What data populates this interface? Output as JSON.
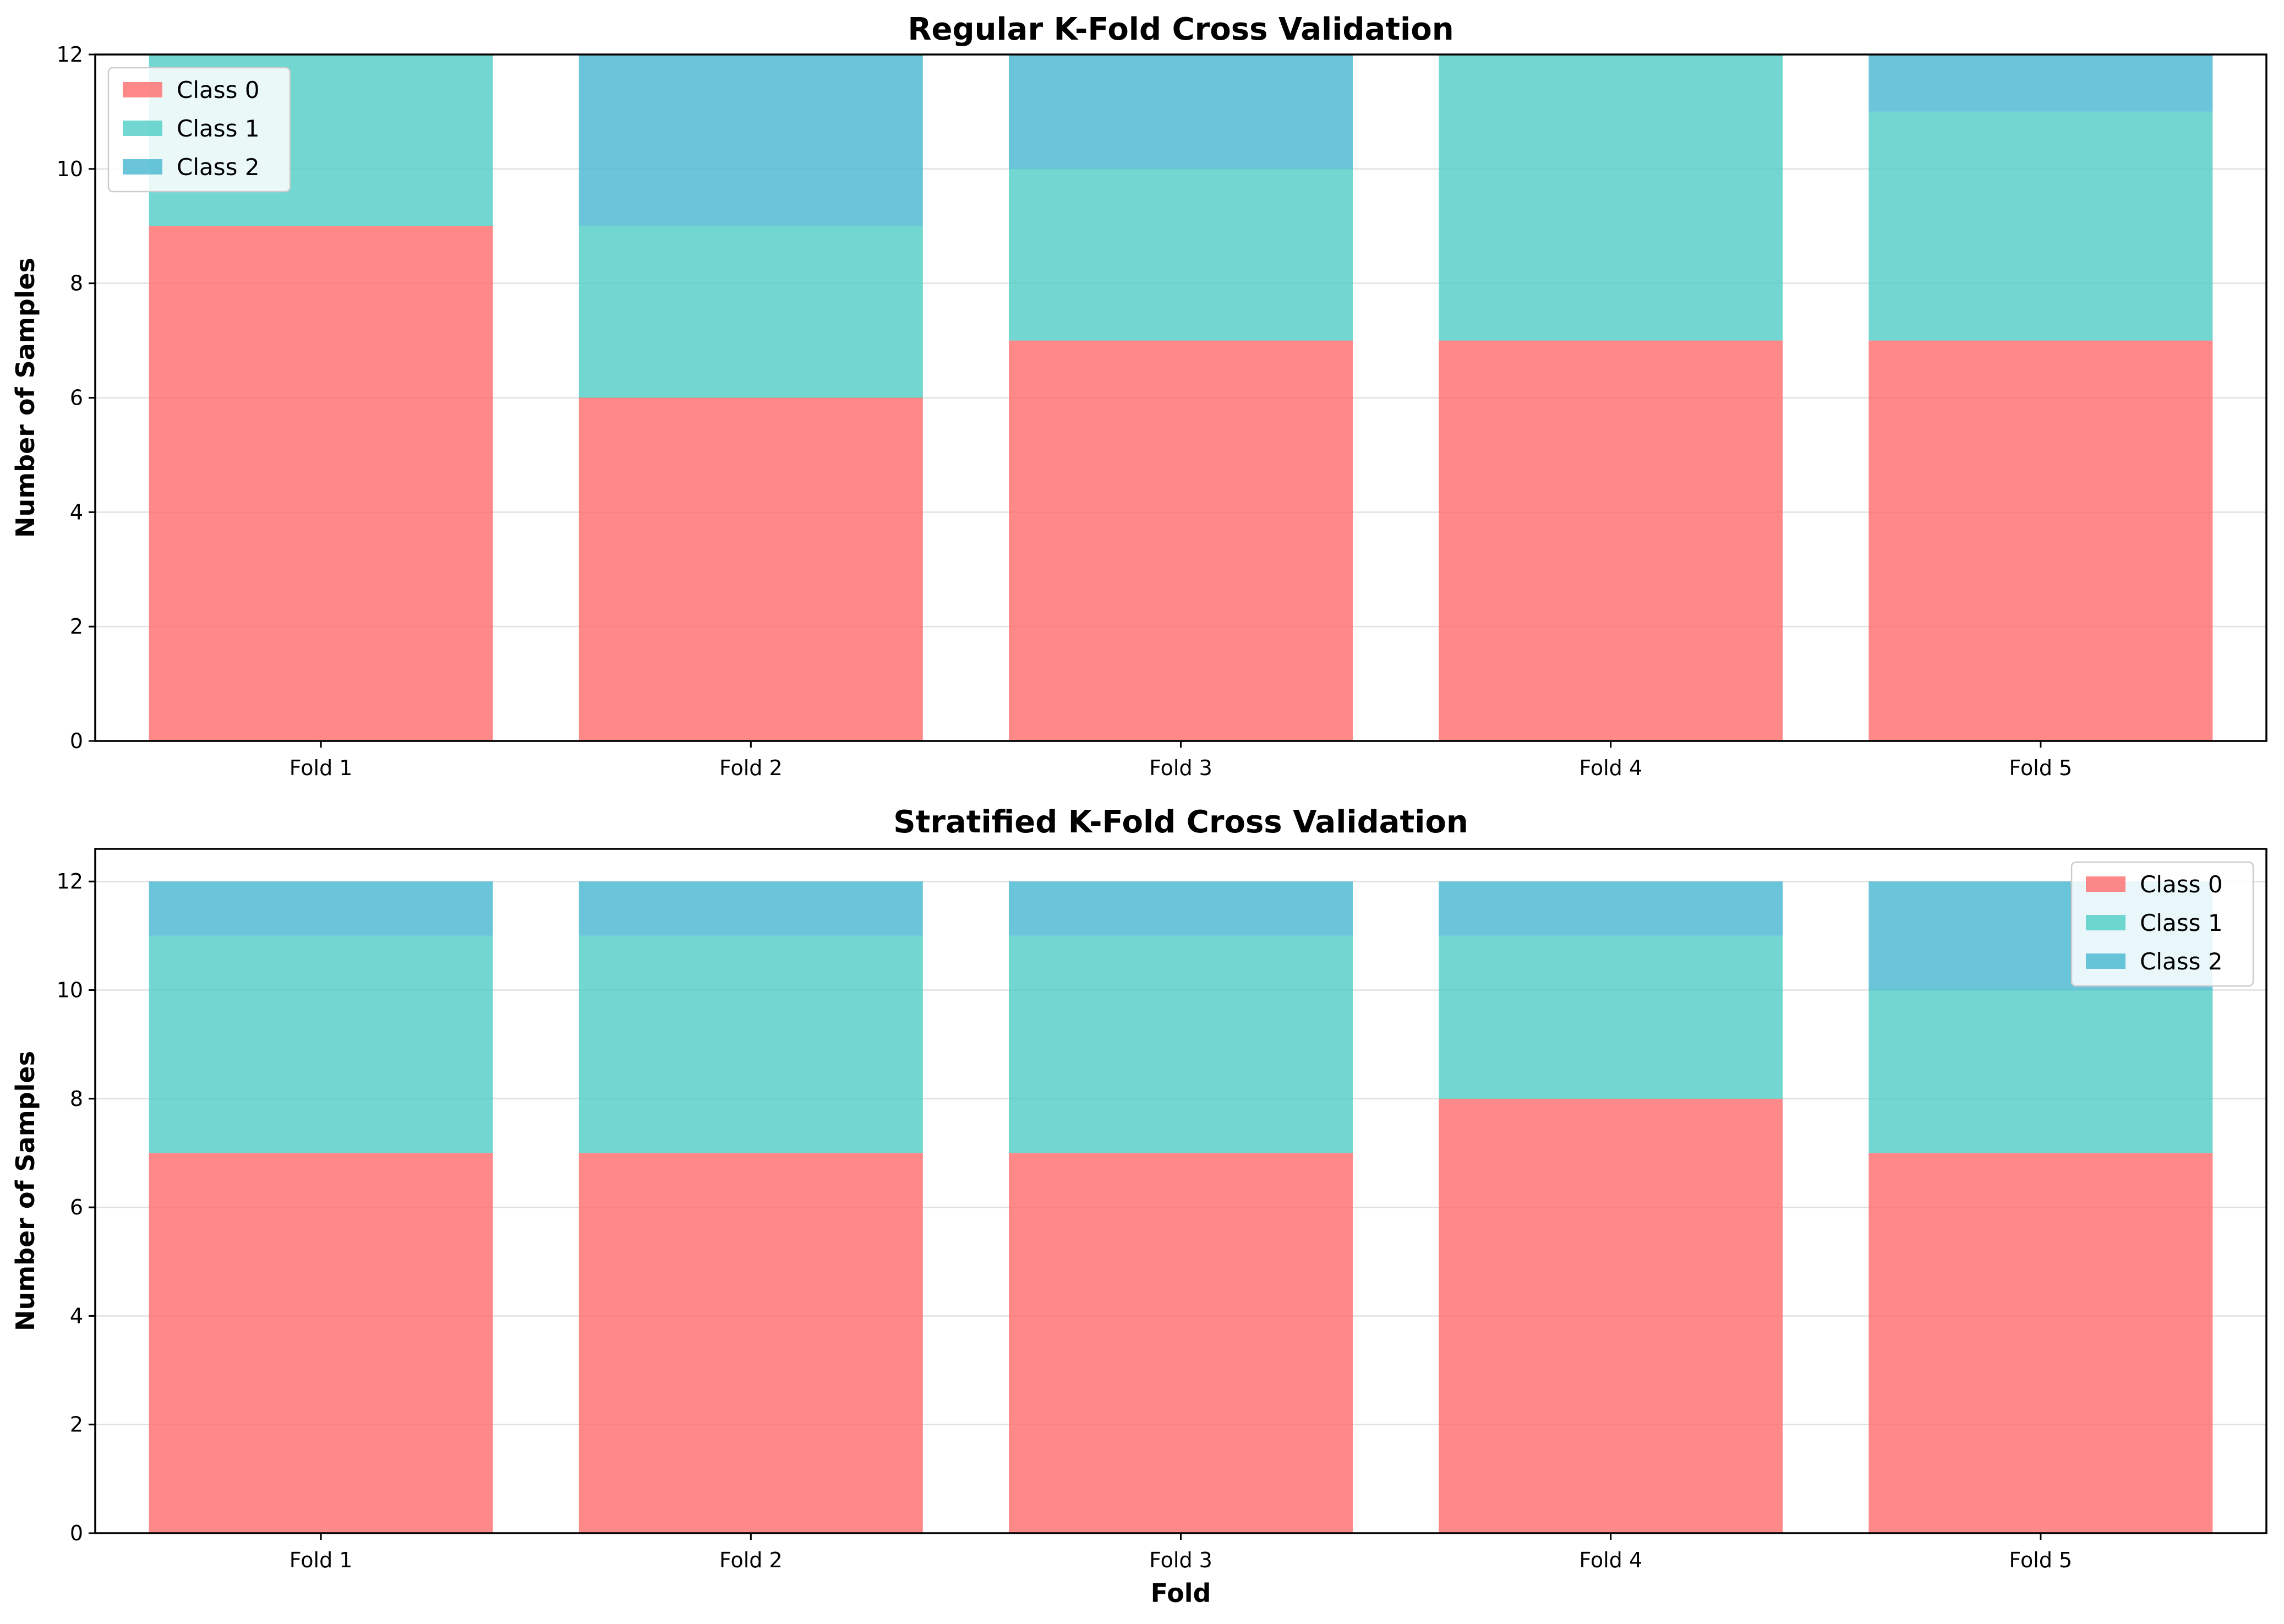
{
  "colors": {
    "Class 0": "#FF6B6B",
    "Class 1": "#4ECDC4",
    "Class 2": "#45B7D1",
    "bar_alpha": 0.8
  },
  "chart_data": [
    {
      "type": "bar",
      "stacked": true,
      "title": "Regular K-Fold Cross Validation",
      "xlabel": "",
      "ylabel": "Number of Samples",
      "categories": [
        "Fold 1",
        "Fold 2",
        "Fold 3",
        "Fold 4",
        "Fold 5"
      ],
      "series": [
        {
          "name": "Class 0",
          "values": [
            9,
            6,
            7,
            7,
            7
          ]
        },
        {
          "name": "Class 1",
          "values": [
            3,
            3,
            3,
            5,
            4
          ]
        },
        {
          "name": "Class 2",
          "values": [
            0,
            3,
            2,
            0,
            1
          ]
        }
      ],
      "ylim": [
        0,
        12
      ],
      "yticks": [
        0,
        2,
        4,
        6,
        8,
        10,
        12
      ],
      "grid": "y",
      "legend": "upper left"
    },
    {
      "type": "bar",
      "stacked": true,
      "title": "Stratified K-Fold Cross Validation",
      "xlabel": "Fold",
      "ylabel": "Number of Samples",
      "categories": [
        "Fold 1",
        "Fold 2",
        "Fold 3",
        "Fold 4",
        "Fold 5"
      ],
      "series": [
        {
          "name": "Class 0",
          "values": [
            7,
            7,
            7,
            8,
            7
          ]
        },
        {
          "name": "Class 1",
          "values": [
            4,
            4,
            4,
            3,
            3
          ]
        },
        {
          "name": "Class 2",
          "values": [
            1,
            1,
            1,
            1,
            2
          ]
        }
      ],
      "ylim": [
        0,
        12.6
      ],
      "yticks": [
        0,
        2,
        4,
        6,
        8,
        10,
        12
      ],
      "grid": "y",
      "legend": "upper right"
    }
  ]
}
